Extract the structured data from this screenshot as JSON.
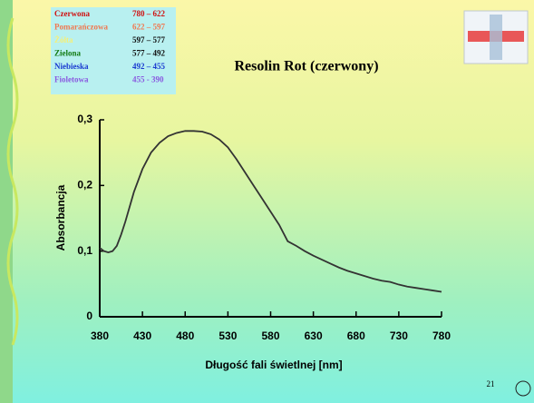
{
  "legend_table": {
    "rows": [
      {
        "name": "Czerwona",
        "range": "780 – 622",
        "name_color": "#d01010",
        "range_color": "#d01010"
      },
      {
        "name": "Pomarańczowa",
        "range": "622 – 597",
        "name_color": "#f07850",
        "range_color": "#f07850"
      },
      {
        "name": "Żółta",
        "range": "597 – 577",
        "name_color": "#f4f07a",
        "range_color": "#111111"
      },
      {
        "name": "Zielona",
        "range": "577 – 492",
        "name_color": "#127a12",
        "range_color": "#111111"
      },
      {
        "name": "Niebieska",
        "range": "492 – 455",
        "name_color": "#1a3ad0",
        "range_color": "#1a3ad0"
      },
      {
        "name": "Fioletowa",
        "range": "455 - 390",
        "name_color": "#8a5ae0",
        "range_color": "#8a5ae0"
      }
    ]
  },
  "page_number": "21",
  "chart_data": {
    "type": "line",
    "title": "Resolin Rot (czerwony)",
    "x_label": "Długość fali świetlnej [nm]",
    "y_label": "Absorbancja",
    "x": [
      380,
      385,
      390,
      395,
      400,
      405,
      410,
      420,
      430,
      440,
      450,
      460,
      470,
      480,
      490,
      500,
      510,
      520,
      530,
      540,
      550,
      560,
      570,
      580,
      590,
      600,
      610,
      620,
      630,
      640,
      650,
      660,
      670,
      680,
      690,
      700,
      710,
      720,
      730,
      740,
      750,
      760,
      770,
      780
    ],
    "series": [
      {
        "color": "#333333",
        "values": [
          0.105,
          0.1,
          0.098,
          0.1,
          0.108,
          0.125,
          0.145,
          0.19,
          0.225,
          0.25,
          0.265,
          0.275,
          0.28,
          0.283,
          0.283,
          0.282,
          0.278,
          0.27,
          0.258,
          0.24,
          0.22,
          0.2,
          0.18,
          0.16,
          0.14,
          0.115,
          0.108,
          0.1,
          0.093,
          0.087,
          0.081,
          0.075,
          0.07,
          0.066,
          0.062,
          0.058,
          0.055,
          0.053,
          0.049,
          0.046,
          0.044,
          0.042,
          0.04,
          0.038
        ]
      }
    ],
    "xlim": [
      380,
      780
    ],
    "xticks": [
      380,
      430,
      480,
      530,
      580,
      630,
      680,
      730,
      780
    ],
    "ylim": [
      0,
      0.3
    ],
    "yticks": [
      0,
      {
        "value": 0.1,
        "label": "0,1"
      },
      {
        "value": 0.2,
        "label": "0,2"
      },
      {
        "value": 0.3,
        "label": "0,3"
      }
    ]
  }
}
